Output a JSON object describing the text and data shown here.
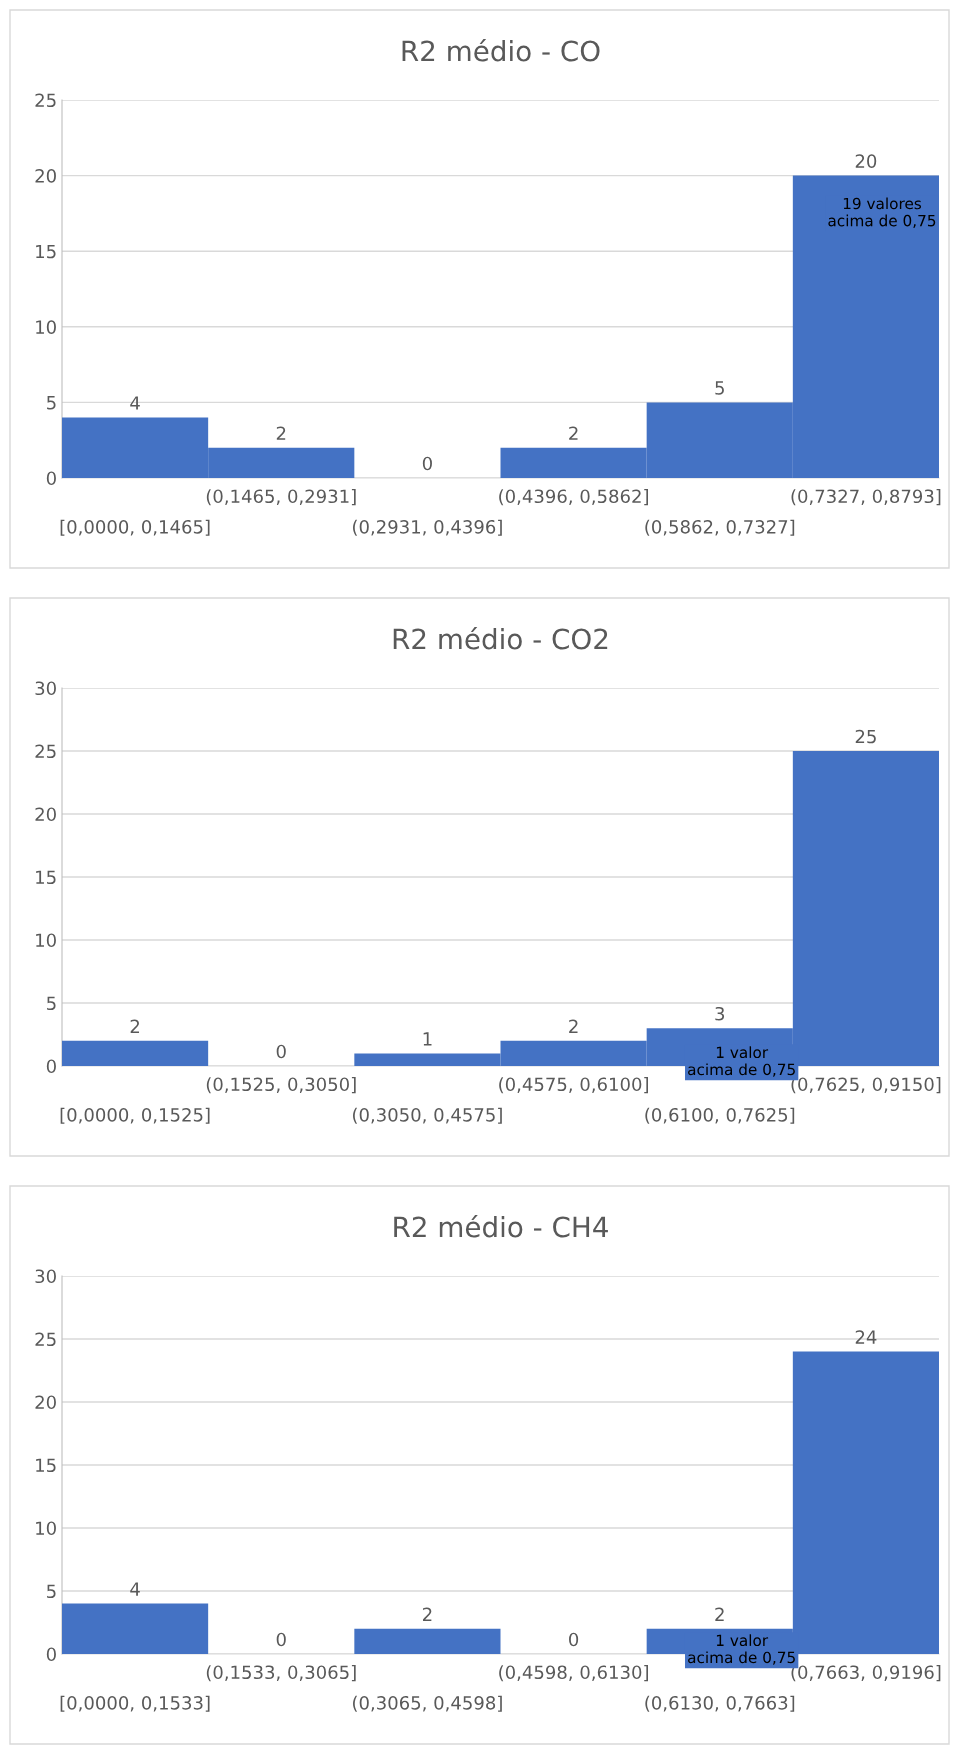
{
  "chart_data": [
    {
      "type": "bar",
      "title": "R2 médio - CO",
      "categories": [
        "[0,0000, 0,1465]",
        "(0,1465, 0,2931]",
        "(0,2931, 0,4396]",
        "(0,4396, 0,5862]",
        "(0,5862, 0,7327]",
        "(0,7327, 0,8793]"
      ],
      "values": [
        4,
        2,
        0,
        2,
        5,
        20
      ],
      "color": "#4472c4",
      "ylim": [
        0,
        25
      ],
      "yticks": [
        0,
        5,
        10,
        15,
        20,
        25
      ],
      "grid": "y",
      "data_labels": true,
      "annotations": [
        "19 valores acima de 0,75"
      ]
    },
    {
      "type": "bar",
      "title": "R2 médio - CO2",
      "categories": [
        "[0,0000, 0,1525]",
        "(0,1525, 0,3050]",
        "(0,3050, 0,4575]",
        "(0,4575, 0,6100]",
        "(0,6100, 0,7625]",
        "(0,7625, 0,9150]"
      ],
      "values": [
        2,
        0,
        1,
        2,
        3,
        25
      ],
      "color": "#4472c4",
      "ylim": [
        0,
        30
      ],
      "yticks": [
        0,
        5,
        10,
        15,
        20,
        25,
        30
      ],
      "grid": "y",
      "data_labels": true,
      "annotations": [
        "1 valor acima de 0,75"
      ]
    },
    {
      "type": "bar",
      "title": "R2 médio - CH4",
      "categories": [
        "[0,0000, 0,1533]",
        "(0,1533, 0,3065]",
        "(0,3065, 0,4598]",
        "(0,4598, 0,6130]",
        "(0,6130, 0,7663]",
        "(0,7663, 0,9196]"
      ],
      "values": [
        4,
        0,
        2,
        0,
        2,
        24
      ],
      "color": "#4472c4",
      "ylim": [
        0,
        30
      ],
      "yticks": [
        0,
        5,
        10,
        15,
        20,
        25,
        30
      ],
      "grid": "y",
      "data_labels": true,
      "annotations": [
        "1 valor acima de 0,75"
      ]
    }
  ]
}
